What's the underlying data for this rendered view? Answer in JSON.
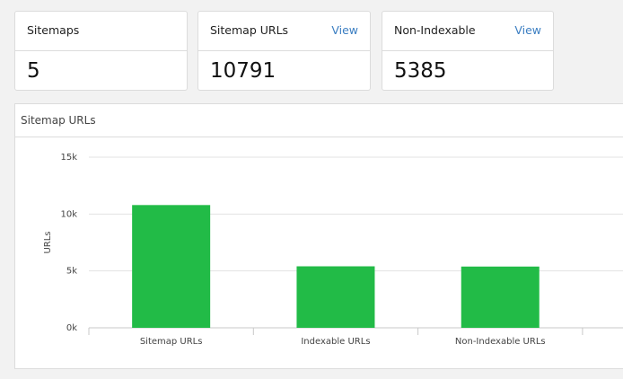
{
  "cards": [
    {
      "title": "Sitemaps",
      "value": 5
    },
    {
      "title": "Sitemap URLs",
      "link": "View",
      "value": 10791
    },
    {
      "title": "Non-Indexable",
      "link": "View",
      "value": 5385
    }
  ],
  "panel": {
    "title": "Sitemap URLs"
  },
  "chart_data": {
    "type": "bar",
    "ylabel": "URLs",
    "categories": [
      "Sitemap URLs",
      "Indexable URLs",
      "Non-Indexable URLs"
    ],
    "values": [
      10791,
      5406,
      5385
    ],
    "color": "#22bb47",
    "ylim": [
      0,
      15000
    ],
    "yticks": [
      {
        "value": 0,
        "label": "0k"
      },
      {
        "value": 5000,
        "label": "5k"
      },
      {
        "value": 10000,
        "label": "10k"
      },
      {
        "value": 15000,
        "label": "15k"
      }
    ],
    "grid": true
  }
}
